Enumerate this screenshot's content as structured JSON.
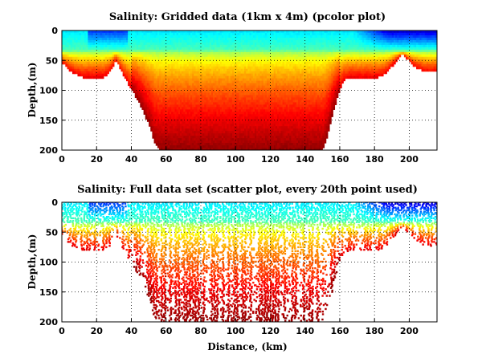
{
  "chart_data": [
    {
      "type": "heatmap",
      "subtype": "pcolor",
      "title": "Salinity: Gridded data (1km x 4m) (pcolor plot)",
      "xlabel": "",
      "ylabel": "Depth,(m)",
      "xlim": [
        0,
        216
      ],
      "ylim": [
        200,
        0
      ],
      "xticks": [
        0,
        20,
        40,
        60,
        80,
        100,
        120,
        140,
        160,
        180,
        200
      ],
      "yticks": [
        0,
        50,
        100,
        150,
        200
      ],
      "grid": "dotted",
      "colormap": "jet",
      "grid_resolution": {
        "dx_km": 1,
        "dz_m": 4
      },
      "bottom_profile_km_m": [
        [
          0,
          55
        ],
        [
          4,
          68
        ],
        [
          8,
          75
        ],
        [
          12,
          80
        ],
        [
          18,
          80
        ],
        [
          24,
          80
        ],
        [
          28,
          70
        ],
        [
          31,
          50
        ],
        [
          35,
          75
        ],
        [
          40,
          100
        ],
        [
          45,
          125
        ],
        [
          48,
          145
        ],
        [
          51,
          165
        ],
        [
          53,
          190
        ],
        [
          56,
          200
        ],
        [
          150,
          200
        ],
        [
          152,
          185
        ],
        [
          154,
          165
        ],
        [
          156,
          140
        ],
        [
          158,
          120
        ],
        [
          160,
          100
        ],
        [
          162,
          85
        ],
        [
          166,
          80
        ],
        [
          174,
          80
        ],
        [
          182,
          80
        ],
        [
          186,
          75
        ],
        [
          190,
          62
        ],
        [
          193,
          50
        ],
        [
          196,
          40
        ],
        [
          199,
          50
        ],
        [
          203,
          62
        ],
        [
          208,
          70
        ],
        [
          212,
          72
        ],
        [
          216,
          70
        ]
      ]
    },
    {
      "type": "scatter",
      "title": "Salinity: Full data set (scatter plot, every 20th point used)",
      "xlabel": "Distance, (km)",
      "ylabel": "Depth,(m)",
      "xlim": [
        0,
        216
      ],
      "ylim": [
        200,
        0
      ],
      "xticks": [
        0,
        20,
        40,
        60,
        80,
        100,
        120,
        140,
        160,
        180,
        200
      ],
      "yticks": [
        0,
        50,
        100,
        150,
        200
      ],
      "grid": "dotted",
      "colormap": "jet",
      "subsample": 20
    }
  ]
}
